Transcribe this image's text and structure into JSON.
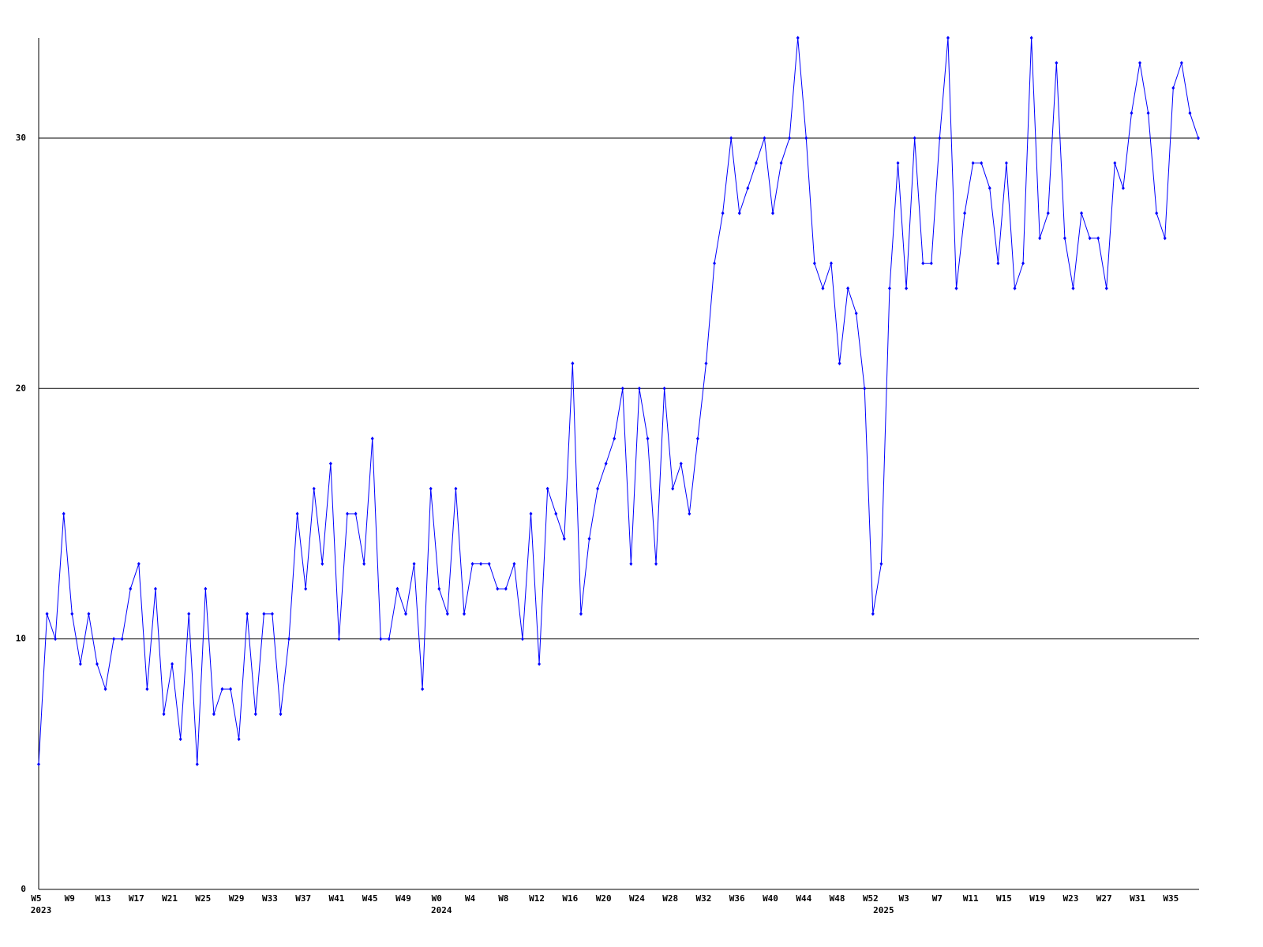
{
  "chart_data": {
    "type": "line",
    "categories": [
      "W5",
      null,
      null,
      null,
      "W9",
      null,
      null,
      null,
      "W13",
      null,
      null,
      null,
      "W17",
      null,
      null,
      null,
      "W21",
      null,
      null,
      null,
      "W25",
      null,
      null,
      null,
      "W29",
      null,
      null,
      null,
      "W33",
      null,
      null,
      null,
      "W37",
      null,
      null,
      null,
      "W41",
      null,
      null,
      null,
      "W45",
      null,
      null,
      null,
      "W49",
      null,
      null,
      null,
      "W0",
      null,
      null,
      null,
      "W4",
      null,
      null,
      null,
      "W8",
      null,
      null,
      null,
      "W12",
      null,
      null,
      null,
      "W16",
      null,
      null,
      null,
      "W20",
      null,
      null,
      null,
      "W24",
      null,
      null,
      null,
      "W28",
      null,
      null,
      null,
      "W32",
      null,
      null,
      null,
      "W36",
      null,
      null,
      null,
      "W40",
      null,
      null,
      null,
      "W44",
      null,
      null,
      null,
      "W48",
      null,
      null,
      null,
      "W52",
      null,
      null,
      null,
      "W3",
      null,
      null,
      null,
      "W7",
      null,
      null,
      null,
      "W11",
      null,
      null,
      null,
      "W15",
      null,
      null,
      null,
      "W19",
      null,
      null,
      null,
      "W23",
      null,
      null,
      null,
      "W27",
      null,
      null,
      null,
      "W31",
      null,
      null,
      null,
      "W35",
      null,
      null,
      null
    ],
    "year_labels": [
      "2023",
      null,
      null,
      null,
      null,
      null,
      null,
      null,
      null,
      null,
      null,
      null,
      null,
      null,
      null,
      null,
      null,
      null,
      null,
      null,
      null,
      null,
      null,
      null,
      null,
      null,
      null,
      null,
      null,
      null,
      null,
      null,
      null,
      null,
      null,
      null,
      null,
      null,
      null,
      null,
      null,
      null,
      null,
      null,
      null,
      null,
      null,
      null,
      "2024",
      null,
      null,
      null,
      null,
      null,
      null,
      null,
      null,
      null,
      null,
      null,
      null,
      null,
      null,
      null,
      null,
      null,
      null,
      null,
      null,
      null,
      null,
      null,
      null,
      null,
      null,
      null,
      null,
      null,
      null,
      null,
      null,
      null,
      null,
      null,
      null,
      null,
      null,
      null,
      null,
      null,
      null,
      null,
      null,
      null,
      null,
      null,
      null,
      null,
      null,
      null,
      null,
      "2025",
      null,
      null,
      null,
      null,
      null,
      null,
      null,
      null,
      null,
      null,
      null,
      null,
      null,
      null,
      null,
      null,
      null,
      null,
      null,
      null,
      null,
      null,
      null,
      null,
      null,
      null,
      null,
      null,
      null,
      null,
      null,
      null,
      null,
      null,
      null,
      null,
      null,
      null
    ],
    "series": [
      {
        "color": "#0000ff",
        "values": [
          5,
          11,
          10,
          15,
          11,
          9,
          11,
          9,
          8,
          10,
          10,
          12,
          13,
          8,
          12,
          7,
          9,
          6,
          11,
          5,
          12,
          7,
          8,
          8,
          6,
          11,
          7,
          11,
          11,
          7,
          10,
          15,
          12,
          16,
          13,
          17,
          10,
          15,
          15,
          13,
          18,
          10,
          10,
          12,
          11,
          13,
          8,
          16,
          12,
          11,
          16,
          11,
          13,
          13,
          13,
          12,
          12,
          13,
          10,
          15,
          9,
          16,
          15,
          14,
          21,
          11,
          14,
          16,
          17,
          18,
          20,
          13,
          20,
          18,
          13,
          20,
          16,
          17,
          15,
          18,
          21,
          25,
          27,
          30,
          27,
          28,
          29,
          30,
          27,
          29,
          30,
          34,
          30,
          25,
          24,
          25,
          21,
          24,
          23,
          20,
          11,
          13,
          24,
          29,
          24,
          30,
          25,
          25,
          30,
          34,
          24,
          27,
          29,
          29,
          28,
          25,
          29,
          24,
          25,
          34,
          26,
          27,
          33,
          26,
          24,
          27,
          26,
          26,
          24,
          29,
          28,
          31,
          33,
          31,
          27,
          26,
          32,
          33,
          31,
          30
        ]
      }
    ],
    "ylim": [
      0,
      34
    ],
    "yticks": [
      0,
      10,
      20,
      30
    ],
    "grid": true
  }
}
